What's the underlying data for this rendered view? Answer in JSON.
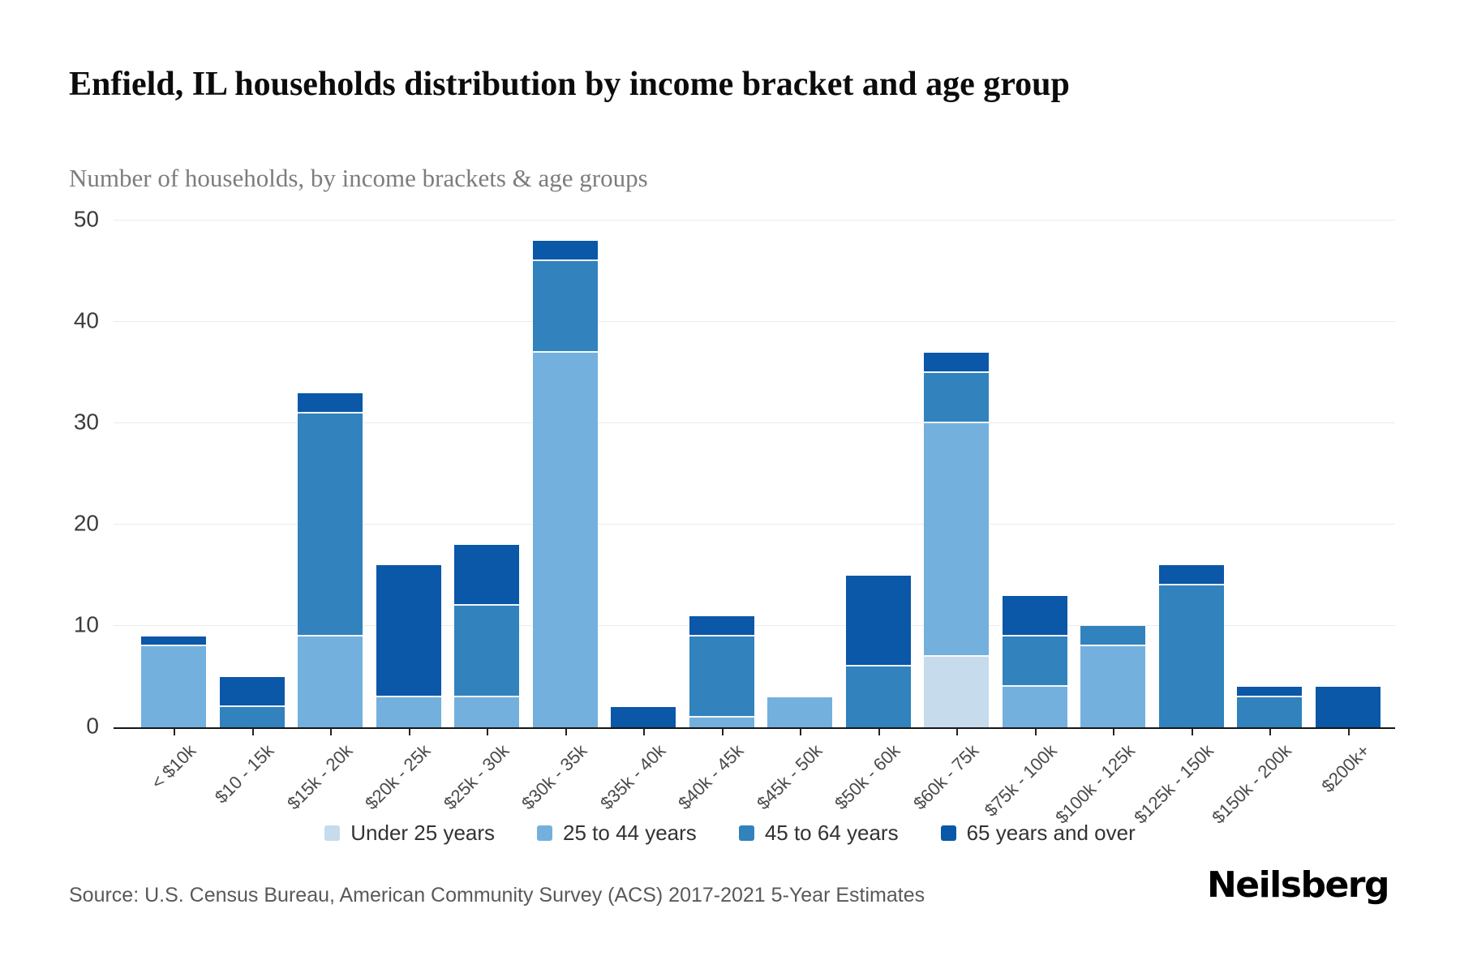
{
  "title": "Enfield, IL households distribution by income bracket and age group",
  "subtitle": "Number of households, by income brackets & age groups",
  "source": "Source: U.S. Census Bureau, American Community Survey (ACS) 2017-2021 5-Year Estimates",
  "logo": "Neilsberg",
  "chart_data": {
    "type": "bar",
    "stacked": true,
    "title": "Enfield, IL households distribution by income bracket and age group",
    "subtitle": "Number of households, by income brackets & age groups",
    "xlabel": "",
    "ylabel": "Number of households",
    "ylim": [
      0,
      50
    ],
    "yticks": [
      0,
      10,
      20,
      30,
      40,
      50
    ],
    "grid": true,
    "legend_position": "bottom",
    "categories": [
      "< $10k",
      "$10 - 15k",
      "$15k - 20k",
      "$20k - 25k",
      "$25k - 30k",
      "$30k - 35k",
      "$35k - 40k",
      "$40k - 45k",
      "$45k - 50k",
      "$50k - 60k",
      "$60k - 75k",
      "$75k - 100k",
      "$100k - 125k",
      "$125k - 150k",
      "$150k - 200k",
      "$200k+"
    ],
    "series": [
      {
        "name": "Under 25 years",
        "color": "#c6dbec",
        "values": [
          0,
          0,
          0,
          0,
          0,
          0,
          0,
          0,
          0,
          0,
          7,
          0,
          0,
          0,
          0,
          0
        ]
      },
      {
        "name": "25 to 44 years",
        "color": "#74b0dd",
        "values": [
          8,
          0,
          9,
          3,
          3,
          37,
          0,
          1,
          3,
          0,
          23,
          4,
          8,
          0,
          0,
          0
        ]
      },
      {
        "name": "45 to 64 years",
        "color": "#3182bd",
        "values": [
          0,
          2,
          22,
          0,
          9,
          9,
          0,
          8,
          0,
          6,
          5,
          5,
          2,
          14,
          3,
          0
        ]
      },
      {
        "name": "65 years and over",
        "color": "#0b57a8",
        "values": [
          1,
          3,
          2,
          13,
          6,
          2,
          2,
          2,
          0,
          9,
          2,
          4,
          0,
          2,
          1,
          4
        ]
      }
    ],
    "totals": [
      9,
      5,
      33,
      16,
      18,
      48,
      2,
      11,
      3,
      15,
      37,
      13,
      10,
      16,
      4,
      4
    ]
  }
}
